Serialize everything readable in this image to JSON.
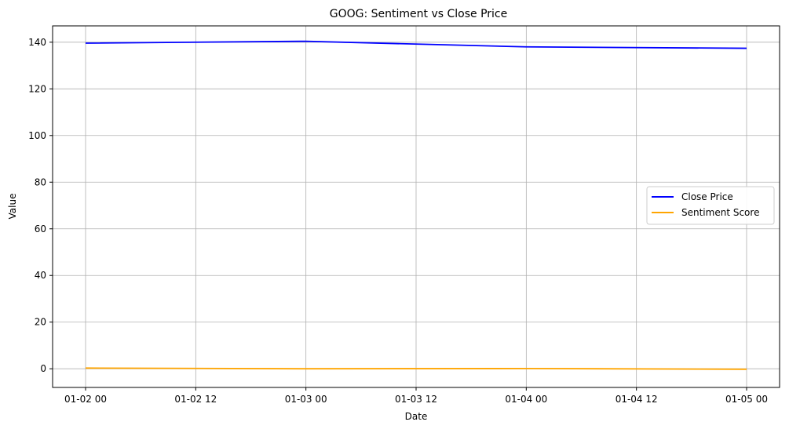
{
  "chart_data": {
    "type": "line",
    "title": "GOOG: Sentiment vs Close Price",
    "xlabel": "Date",
    "ylabel": "Value",
    "x": [
      "2024-01-02 00:00",
      "2024-01-03 00:00",
      "2024-01-04 00:00",
      "2024-01-05 00:00"
    ],
    "x_ticks": [
      "01-02 00",
      "01-02 12",
      "01-03 00",
      "01-03 12",
      "01-04 00",
      "01-04 12",
      "01-05 00"
    ],
    "y_ticks": [
      0,
      20,
      40,
      60,
      80,
      100,
      120,
      140
    ],
    "ylim": [
      -8,
      147
    ],
    "grid": true,
    "legend_position": "center-right",
    "series": [
      {
        "name": "Close Price",
        "color": "#0000ff",
        "values": [
          139.6,
          140.4,
          138.0,
          137.4
        ]
      },
      {
        "name": "Sentiment Score",
        "color": "#ffa500",
        "values": [
          0.3,
          0.0,
          0.1,
          -0.2
        ]
      }
    ]
  }
}
